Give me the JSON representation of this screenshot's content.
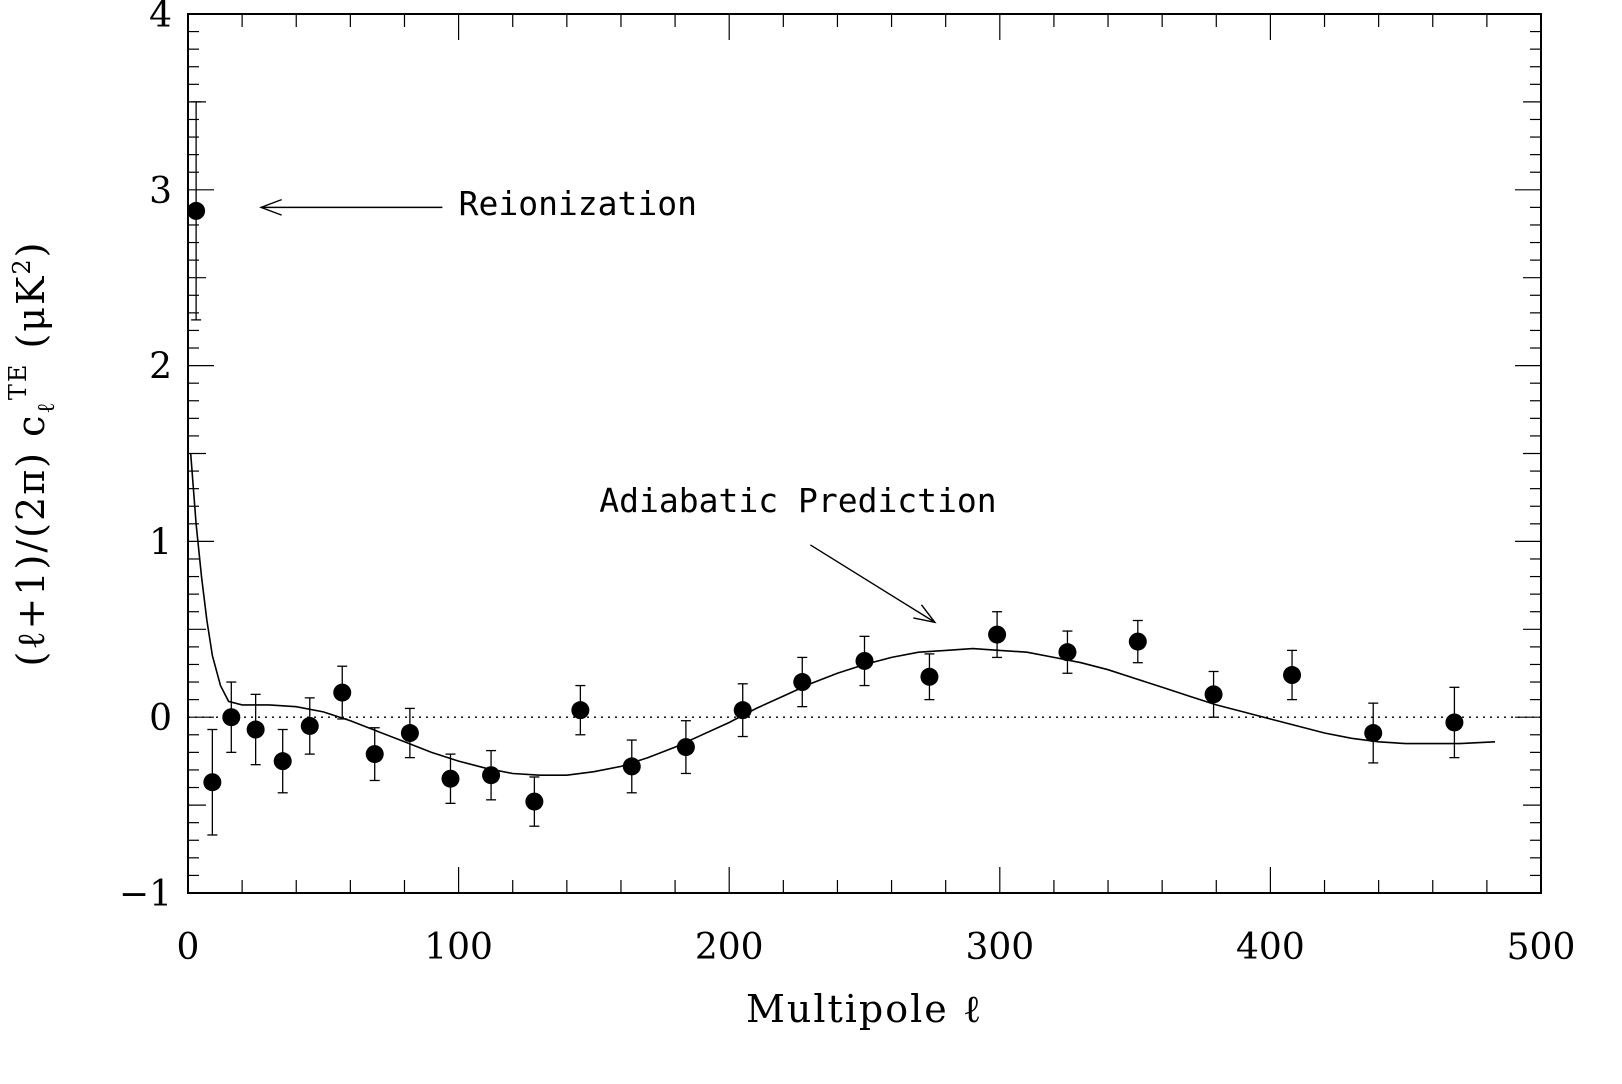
{
  "chart_data": {
    "type": "scatter",
    "title": "",
    "xlabel": "Multipole ℓ",
    "ylabel": "(ℓ+1)/(2π) c_ℓ^TE (μK²)",
    "ylabel_parts": {
      "prefix": "(ℓ+1)/(2π) c",
      "sub": "ℓ",
      "sup": "TE",
      "suffix": " (μK",
      "suffix_sup": "2",
      "close": ")"
    },
    "xlim": [
      0,
      500
    ],
    "ylim": [
      -1,
      4
    ],
    "x_ticks": [
      0,
      100,
      200,
      300,
      400,
      500
    ],
    "x_tick_labels": [
      "0",
      "100",
      "200",
      "300",
      "400",
      "500"
    ],
    "y_ticks": [
      -1,
      0,
      1,
      2,
      3,
      4
    ],
    "y_tick_labels": [
      "−1",
      "0",
      "1",
      "2",
      "3",
      "4"
    ],
    "grid": false,
    "zero_line": "dotted",
    "series": [
      {
        "kind": "points_with_errors",
        "x": [
          3,
          9,
          16,
          25,
          35,
          45,
          57,
          69,
          82,
          97,
          112,
          128,
          145,
          164,
          184,
          205,
          227,
          250,
          274,
          299,
          325,
          351,
          379,
          408,
          438,
          468
        ],
        "y": [
          2.88,
          -0.37,
          0.0,
          -0.07,
          -0.25,
          -0.05,
          0.14,
          -0.21,
          -0.09,
          -0.35,
          -0.33,
          -0.48,
          0.04,
          -0.28,
          -0.17,
          0.04,
          0.2,
          0.32,
          0.23,
          0.47,
          0.37,
          0.43,
          0.13,
          0.24,
          -0.09,
          -0.03
        ],
        "yerr": [
          0.62,
          0.3,
          0.2,
          0.2,
          0.18,
          0.16,
          0.15,
          0.15,
          0.14,
          0.14,
          0.14,
          0.14,
          0.14,
          0.15,
          0.15,
          0.15,
          0.14,
          0.14,
          0.13,
          0.13,
          0.12,
          0.12,
          0.13,
          0.14,
          0.17,
          0.2
        ]
      },
      {
        "kind": "model_curve",
        "x": [
          1,
          3,
          5,
          7,
          9,
          12,
          15,
          20,
          30,
          40,
          50,
          60,
          70,
          80,
          90,
          100,
          110,
          120,
          130,
          140,
          150,
          160,
          170,
          180,
          190,
          200,
          210,
          220,
          230,
          240,
          250,
          260,
          270,
          280,
          290,
          300,
          310,
          320,
          330,
          340,
          350,
          360,
          370,
          380,
          390,
          400,
          410,
          420,
          430,
          440,
          450,
          460,
          470,
          483
        ],
        "y": [
          1.5,
          1.1,
          0.8,
          0.55,
          0.35,
          0.18,
          0.09,
          0.07,
          0.07,
          0.06,
          0.03,
          -0.02,
          -0.08,
          -0.14,
          -0.2,
          -0.25,
          -0.29,
          -0.32,
          -0.33,
          -0.33,
          -0.31,
          -0.28,
          -0.23,
          -0.17,
          -0.1,
          -0.03,
          0.05,
          0.12,
          0.19,
          0.25,
          0.3,
          0.34,
          0.37,
          0.38,
          0.39,
          0.38,
          0.37,
          0.34,
          0.31,
          0.27,
          0.22,
          0.17,
          0.12,
          0.07,
          0.03,
          -0.01,
          -0.05,
          -0.09,
          -0.12,
          -0.14,
          -0.15,
          -0.15,
          -0.15,
          -0.14
        ]
      }
    ],
    "annotations": [
      {
        "text": "Reionization",
        "text_at": [
          100,
          2.92
        ],
        "arrow_from": [
          94,
          2.9
        ],
        "arrow_to": [
          27,
          2.9
        ]
      },
      {
        "text": "Adiabatic Prediction",
        "text_at": [
          152,
          1.23
        ],
        "arrow_from": [
          230,
          0.98
        ],
        "arrow_to": [
          276,
          0.54
        ]
      }
    ]
  }
}
